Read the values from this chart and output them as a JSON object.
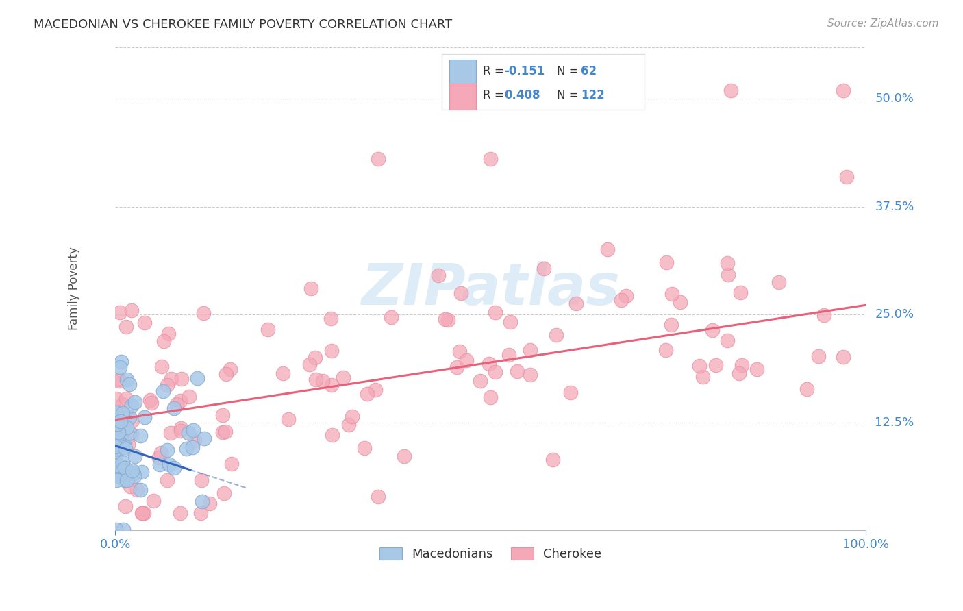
{
  "title": "MACEDONIAN VS CHEROKEE FAMILY POVERTY CORRELATION CHART",
  "source_text": "Source: ZipAtlas.com",
  "ylabel": "Family Poverty",
  "ytick_labels": [
    "12.5%",
    "25.0%",
    "37.5%",
    "50.0%"
  ],
  "ytick_values": [
    0.125,
    0.25,
    0.375,
    0.5
  ],
  "xlim": [
    0,
    1.0
  ],
  "ylim": [
    0.0,
    0.56
  ],
  "blue_color": "#a8c8e8",
  "pink_color": "#f4a8b8",
  "blue_edge": "#88aad0",
  "pink_edge": "#e890a0",
  "blue_line_color": "#3366bb",
  "pink_line_color": "#e8607a",
  "grid_color": "#cccccc",
  "grid_style": "--",
  "title_color": "#333333",
  "source_color": "#999999",
  "ylabel_color": "#555555",
  "tick_color": "#4488cc",
  "watermark_color": "#d0e4f4",
  "watermark_alpha": 0.7
}
